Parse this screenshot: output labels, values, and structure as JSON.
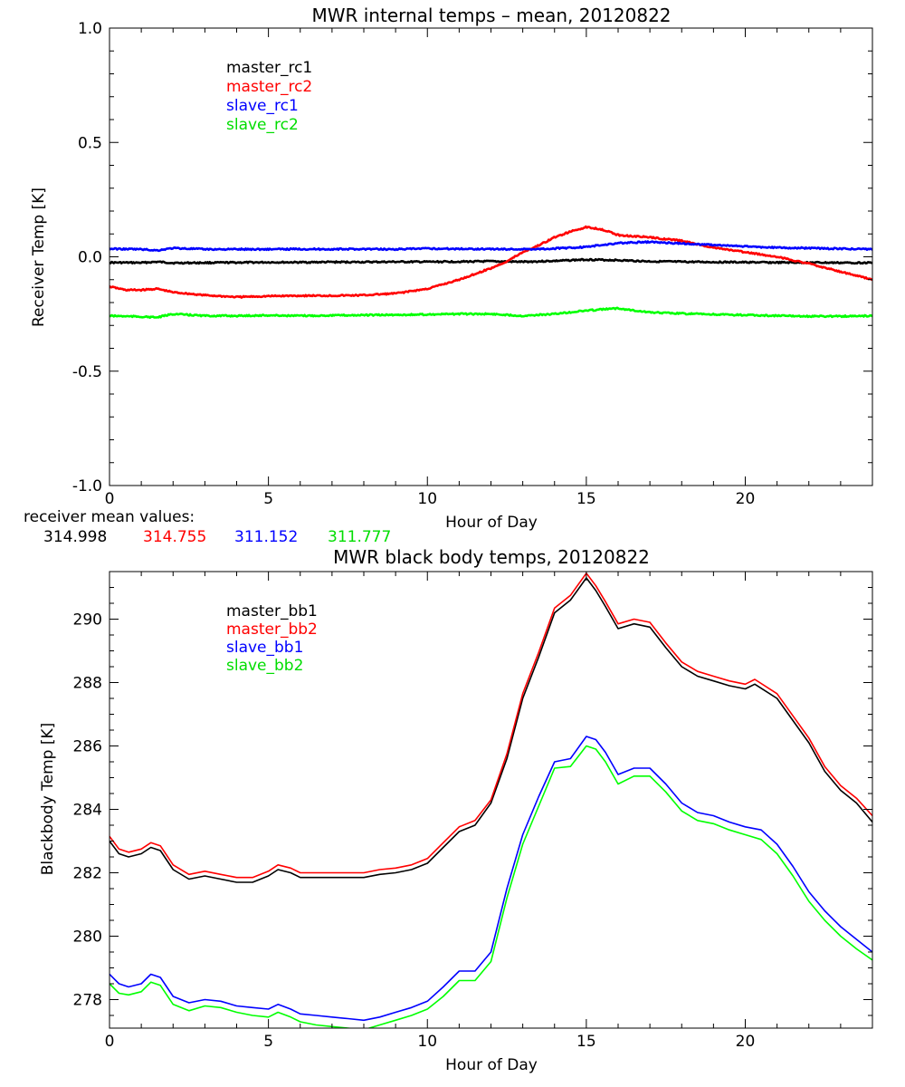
{
  "chart_data": [
    {
      "type": "line",
      "title": "MWR internal temps – mean, 20120822",
      "xlabel": "Hour of Day",
      "ylabel": "Receiver Temp [K]",
      "xlim": [
        0,
        24
      ],
      "ylim": [
        -1.0,
        1.0
      ],
      "xticks": [
        0,
        5,
        10,
        15,
        20
      ],
      "yticks": [
        -1.0,
        -0.5,
        0.0,
        0.5,
        1.0
      ],
      "ytick_labels": [
        "-1.0",
        "-0.5",
        "0.0",
        "0.5",
        "1.0"
      ],
      "grid": false,
      "legend_position": "top-left",
      "series": [
        {
          "name": "master_rc1",
          "color": "#000000",
          "x": [
            0,
            1,
            1.5,
            2,
            3,
            4,
            5,
            6,
            7,
            8,
            9,
            10,
            11,
            12,
            13,
            14,
            15,
            16,
            17,
            18,
            19,
            20,
            21,
            22,
            23,
            24
          ],
          "y": [
            -0.025,
            -0.026,
            -0.022,
            -0.027,
            -0.026,
            -0.025,
            -0.024,
            -0.024,
            -0.023,
            -0.023,
            -0.022,
            -0.022,
            -0.021,
            -0.02,
            -0.022,
            -0.018,
            -0.012,
            -0.015,
            -0.02,
            -0.022,
            -0.023,
            -0.024,
            -0.025,
            -0.025,
            -0.026,
            -0.026
          ]
        },
        {
          "name": "master_rc2",
          "color": "#ff0000",
          "x": [
            0,
            0.5,
            1,
            1.5,
            2,
            3,
            4,
            5,
            6,
            7,
            8,
            9,
            10,
            11,
            12,
            12.5,
            13,
            13.5,
            14,
            14.5,
            15,
            15.5,
            16,
            16.5,
            17,
            18,
            19,
            20,
            21,
            21.5,
            22,
            23,
            24
          ],
          "y": [
            -0.13,
            -0.145,
            -0.145,
            -0.14,
            -0.155,
            -0.168,
            -0.176,
            -0.172,
            -0.17,
            -0.17,
            -0.168,
            -0.16,
            -0.14,
            -0.1,
            -0.05,
            -0.02,
            0.02,
            0.05,
            0.085,
            0.11,
            0.13,
            0.12,
            0.095,
            0.09,
            0.085,
            0.07,
            0.04,
            0.02,
            0.0,
            -0.015,
            -0.03,
            -0.065,
            -0.1
          ]
        },
        {
          "name": "slave_rc1",
          "color": "#0000ff",
          "x": [
            0,
            1,
            1.5,
            2,
            3,
            4,
            5,
            6,
            7,
            8,
            9,
            10,
            11,
            12,
            13,
            14,
            15,
            16,
            17,
            18,
            19,
            20,
            21,
            22,
            23,
            24
          ],
          "y": [
            0.035,
            0.033,
            0.028,
            0.038,
            0.033,
            0.033,
            0.033,
            0.034,
            0.033,
            0.034,
            0.033,
            0.036,
            0.035,
            0.034,
            0.033,
            0.036,
            0.043,
            0.06,
            0.065,
            0.058,
            0.052,
            0.045,
            0.04,
            0.038,
            0.035,
            0.033
          ]
        },
        {
          "name": "slave_rc2",
          "color": "#00ff00",
          "x": [
            0,
            1,
            1.5,
            2,
            3,
            4,
            5,
            6,
            7,
            8,
            9,
            10,
            11,
            12,
            13,
            14,
            15,
            16,
            17,
            18,
            19,
            20,
            21,
            22,
            23,
            24
          ],
          "y": [
            -0.258,
            -0.262,
            -0.265,
            -0.25,
            -0.258,
            -0.258,
            -0.256,
            -0.258,
            -0.256,
            -0.255,
            -0.254,
            -0.252,
            -0.25,
            -0.25,
            -0.258,
            -0.25,
            -0.235,
            -0.225,
            -0.243,
            -0.248,
            -0.252,
            -0.255,
            -0.258,
            -0.26,
            -0.26,
            -0.258
          ]
        }
      ],
      "annotation": {
        "label": "receiver mean values:",
        "values": [
          {
            "text": "314.998",
            "color": "#000000"
          },
          {
            "text": "314.755",
            "color": "#ff0000"
          },
          {
            "text": "311.152",
            "color": "#0000ff"
          },
          {
            "text": "311.777",
            "color": "#00ff00"
          }
        ]
      }
    },
    {
      "type": "line",
      "title": "MWR black body temps, 20120822",
      "xlabel": "Hour of Day",
      "ylabel": "Blackbody Temp [K]",
      "xlim": [
        0,
        24
      ],
      "ylim": [
        277.1,
        291.5
      ],
      "xticks": [
        0,
        5,
        10,
        15,
        20
      ],
      "yticks": [
        278,
        280,
        282,
        284,
        286,
        288,
        290
      ],
      "ytick_labels": [
        "278",
        "280",
        "282",
        "284",
        "286",
        "288",
        "290"
      ],
      "grid": false,
      "legend_position": "top-left",
      "series": [
        {
          "name": "master_bb1",
          "color": "#000000",
          "x": [
            0,
            0.3,
            0.6,
            1,
            1.3,
            1.6,
            2,
            2.5,
            3,
            3.5,
            4,
            4.5,
            5,
            5.3,
            5.7,
            6,
            6.5,
            7,
            8,
            8.5,
            9,
            9.5,
            10,
            10.5,
            11,
            11.5,
            12,
            12.5,
            13,
            13.5,
            14,
            14.5,
            15,
            15.3,
            15.6,
            16,
            16.5,
            17,
            17.5,
            18,
            18.5,
            19,
            19.5,
            20,
            20.3,
            21,
            21.5,
            22,
            22.5,
            23,
            23.5,
            24
          ],
          "y": [
            283.0,
            282.6,
            282.5,
            282.6,
            282.8,
            282.7,
            282.1,
            281.8,
            281.9,
            281.8,
            281.7,
            281.7,
            281.9,
            282.1,
            282.0,
            281.85,
            281.85,
            281.85,
            281.85,
            281.95,
            282.0,
            282.1,
            282.3,
            282.8,
            283.3,
            283.5,
            284.2,
            285.6,
            287.5,
            288.8,
            290.2,
            290.6,
            291.3,
            290.9,
            290.4,
            289.7,
            289.85,
            289.75,
            289.1,
            288.5,
            288.2,
            288.05,
            287.9,
            287.8,
            287.95,
            287.5,
            286.8,
            286.1,
            285.2,
            284.6,
            284.2,
            283.6
          ]
        },
        {
          "name": "master_bb2",
          "color": "#ff0000",
          "x": [
            0,
            0.3,
            0.6,
            1,
            1.3,
            1.6,
            2,
            2.5,
            3,
            3.5,
            4,
            4.5,
            5,
            5.3,
            5.7,
            6,
            6.5,
            7,
            8,
            8.5,
            9,
            9.5,
            10,
            10.5,
            11,
            11.5,
            12,
            12.5,
            13,
            13.5,
            14,
            14.5,
            15,
            15.3,
            15.6,
            16,
            16.5,
            17,
            17.5,
            18,
            18.5,
            19,
            19.5,
            20,
            20.3,
            21,
            21.5,
            22,
            22.5,
            23,
            23.5,
            24
          ],
          "y": [
            283.15,
            282.75,
            282.65,
            282.75,
            282.95,
            282.85,
            282.25,
            281.95,
            282.05,
            281.95,
            281.85,
            281.85,
            282.05,
            282.25,
            282.15,
            282.0,
            282.0,
            282.0,
            282.0,
            282.1,
            282.15,
            282.25,
            282.45,
            282.95,
            283.45,
            283.65,
            284.3,
            285.75,
            287.65,
            288.95,
            290.35,
            290.75,
            291.45,
            291.05,
            290.55,
            289.85,
            290.0,
            289.9,
            289.25,
            288.65,
            288.35,
            288.2,
            288.05,
            287.95,
            288.1,
            287.65,
            286.95,
            286.25,
            285.35,
            284.75,
            284.35,
            283.8
          ]
        },
        {
          "name": "slave_bb1",
          "color": "#0000ff",
          "x": [
            0,
            0.3,
            0.6,
            1,
            1.3,
            1.6,
            2,
            2.5,
            3,
            3.5,
            4,
            4.5,
            5,
            5.3,
            5.7,
            6,
            6.5,
            7,
            7.5,
            8,
            8.5,
            9,
            9.5,
            10,
            10.5,
            11,
            11.5,
            12,
            12.5,
            13,
            13.5,
            14,
            14.5,
            15,
            15.3,
            15.6,
            16,
            16.5,
            17,
            17.5,
            18,
            18.5,
            19,
            19.5,
            20,
            20.5,
            21,
            21.5,
            22,
            22.5,
            23,
            23.5,
            24
          ],
          "y": [
            278.8,
            278.5,
            278.4,
            278.5,
            278.8,
            278.7,
            278.1,
            277.9,
            278.0,
            277.95,
            277.8,
            277.75,
            277.7,
            277.85,
            277.7,
            277.55,
            277.5,
            277.45,
            277.4,
            277.35,
            277.45,
            277.6,
            277.75,
            277.95,
            278.4,
            278.9,
            278.9,
            279.5,
            281.5,
            283.2,
            284.4,
            285.5,
            285.6,
            286.3,
            286.2,
            285.8,
            285.1,
            285.3,
            285.3,
            284.8,
            284.2,
            283.9,
            283.8,
            283.6,
            283.45,
            283.35,
            282.9,
            282.2,
            281.4,
            280.8,
            280.3,
            279.9,
            279.5
          ]
        },
        {
          "name": "slave_bb2",
          "color": "#00ff00",
          "x": [
            0,
            0.3,
            0.6,
            1,
            1.3,
            1.6,
            2,
            2.5,
            3,
            3.5,
            4,
            4.5,
            5,
            5.3,
            5.7,
            6,
            6.5,
            7,
            7.5,
            8,
            8.5,
            9,
            9.5,
            10,
            10.5,
            11,
            11.5,
            12,
            12.5,
            13,
            13.5,
            14,
            14.5,
            15,
            15.3,
            15.6,
            16,
            16.5,
            17,
            17.5,
            18,
            18.5,
            19,
            19.5,
            20,
            20.5,
            21,
            21.5,
            22,
            22.5,
            23,
            23.5,
            24
          ],
          "y": [
            278.5,
            278.2,
            278.15,
            278.25,
            278.55,
            278.45,
            277.85,
            277.65,
            277.8,
            277.75,
            277.6,
            277.5,
            277.45,
            277.6,
            277.45,
            277.3,
            277.2,
            277.15,
            277.1,
            277.05,
            277.2,
            277.35,
            277.5,
            277.7,
            278.1,
            278.6,
            278.6,
            279.2,
            281.2,
            282.9,
            284.1,
            285.3,
            285.35,
            286.0,
            285.9,
            285.5,
            284.8,
            285.05,
            285.05,
            284.55,
            283.95,
            283.65,
            283.55,
            283.35,
            283.2,
            283.05,
            282.6,
            281.9,
            281.1,
            280.5,
            280.0,
            279.6,
            279.25
          ]
        }
      ]
    }
  ]
}
